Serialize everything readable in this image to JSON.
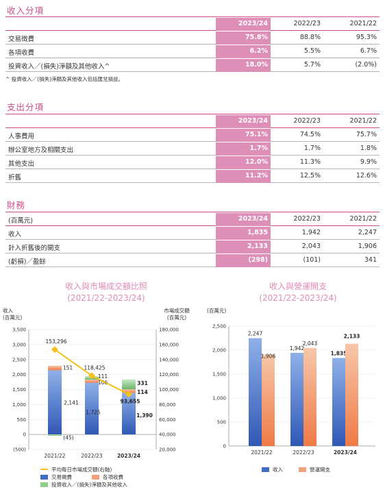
{
  "income": {
    "title": "收入分項",
    "headers": [
      "2023/24",
      "2022/23",
      "2021/22"
    ],
    "rows": [
      {
        "label": "交易徵費",
        "v1": "75.8%",
        "v2": "88.8%",
        "v3": "95.3%"
      },
      {
        "label": "各項收費",
        "v1": "6.2%",
        "v2": "5.5%",
        "v3": "6.7%"
      },
      {
        "label": "投資收入／(損失)淨額及其他收入^",
        "v1": "18.0%",
        "v2": "5.7%",
        "v3": "(2.0%)"
      }
    ],
    "footnote": "^ 投資收入／(損失)淨額及其他收入包括匯兌損益。"
  },
  "expense": {
    "title": "支出分項",
    "headers": [
      "2023/24",
      "2022/23",
      "2021/22"
    ],
    "rows": [
      {
        "label": "人事費用",
        "v1": "75.1%",
        "v2": "74.5%",
        "v3": "75.7%"
      },
      {
        "label": "辦公室地方及相關支出",
        "v1": "1.7%",
        "v2": "1.7%",
        "v3": "1.8%"
      },
      {
        "label": "其他支出",
        "v1": "12.0%",
        "v2": "11.3%",
        "v3": "9.9%"
      },
      {
        "label": "折舊",
        "v1": "11.2%",
        "v2": "12.5%",
        "v3": "12.6%"
      }
    ]
  },
  "finance": {
    "title": "財務",
    "unit_label": "(百萬元)",
    "headers": [
      "2023/24",
      "2022/23",
      "2021/22"
    ],
    "rows": [
      {
        "label": "收入",
        "v1": "1,835",
        "v2": "1,942",
        "v3": "2,247"
      },
      {
        "label": "計入折舊後的開支",
        "v1": "2,133",
        "v2": "2,043",
        "v3": "1,906"
      },
      {
        "label": "(虧損)／盈餘",
        "v1": "(298)",
        "v2": "(101)",
        "v3": "341"
      }
    ]
  },
  "chart_data": [
    {
      "type": "bar",
      "title": "收入與市場成交額比照",
      "subtitle": "(2021/22-2023/24)",
      "ylabel": "收入\n(百萬元)",
      "y2label": "市場成交額\n(百萬元)",
      "categories": [
        "2021/22",
        "2022/23",
        "2023/24"
      ],
      "ylim": [
        -500,
        3500
      ],
      "y2lim": [
        20000,
        180000
      ],
      "yticks": [
        "(500)",
        "0",
        "500",
        "1,000",
        "1,500",
        "2,000",
        "2,500",
        "3,000",
        "3,500"
      ],
      "y2ticks": [
        "20,000",
        "40,000",
        "60,000",
        "80,000",
        "100,000",
        "120,000",
        "140,000",
        "160,000",
        "180,000"
      ],
      "stacked": true,
      "series": [
        {
          "name": "交易徵費",
          "values": [
            2141,
            1725,
            1390
          ],
          "labels": [
            "2,141",
            "1,725",
            "1,390"
          ],
          "color": "#3f6cc4"
        },
        {
          "name": "各項收費",
          "values": [
            151,
            106,
            114
          ],
          "labels": [
            "151",
            "106",
            "114"
          ],
          "color": "#f2a27a"
        },
        {
          "name": "投資收入／(損失)淨額及其他收入",
          "values": [
            -45,
            111,
            331
          ],
          "labels": [
            "(45)",
            "111",
            "331"
          ],
          "color": "#8fcf8a"
        }
      ],
      "line": {
        "name": "平均每日市場成交額(右軸)",
        "values": [
          153296,
          118425,
          93655
        ],
        "labels": [
          "153,296",
          "118,425",
          "93,655"
        ],
        "color": "#f4c21a"
      }
    },
    {
      "type": "bar",
      "title": "收入與營運開支",
      "subtitle": "(2021/22-2023/24)",
      "ylabel": "(百萬元)",
      "categories": [
        "2021/22",
        "2022/23",
        "2023/24"
      ],
      "ylim": [
        0,
        2500
      ],
      "yticks": [
        "0",
        "500",
        "1,000",
        "1,500",
        "2,000",
        "2,500"
      ],
      "series": [
        {
          "name": "收入",
          "values": [
            2247,
            1942,
            1835
          ],
          "labels": [
            "2,247",
            "1,942",
            "1,835"
          ],
          "color": "#3f6cc4"
        },
        {
          "name": "營運開支",
          "values": [
            1906,
            2043,
            2133
          ],
          "labels": [
            "1,906",
            "2,043",
            "2,133"
          ],
          "color": "#f2a27a"
        }
      ]
    }
  ]
}
